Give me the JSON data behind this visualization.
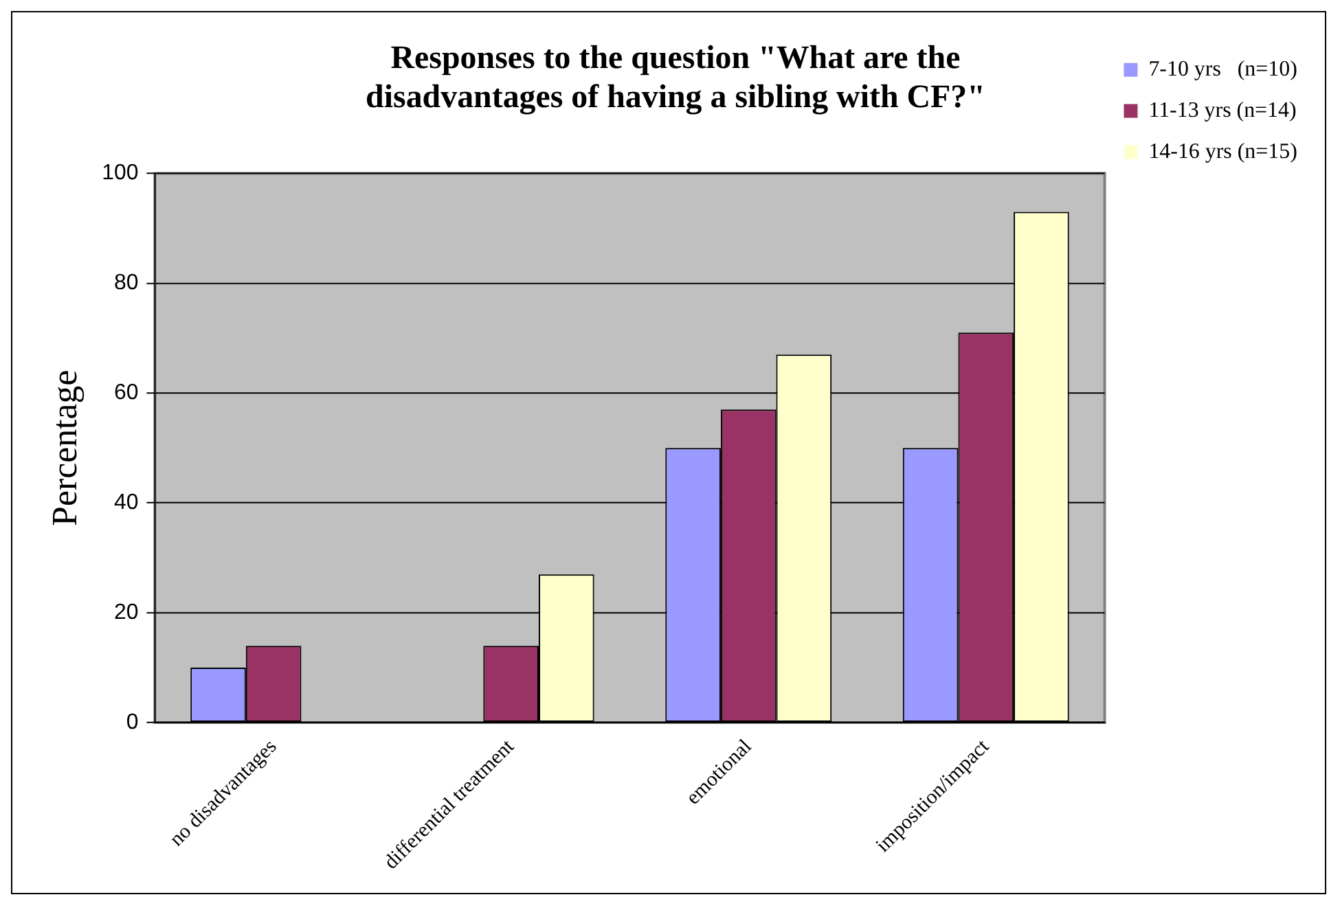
{
  "chart_data": {
    "type": "bar",
    "title": "Responses to the question \"What are the disadvantages of having a sibling with CF?\"",
    "ylabel": "Percentage",
    "categories": [
      "no disadvantages",
      "differential treatment",
      "emotional",
      "imposition/impact"
    ],
    "series": [
      {
        "name": "7-10 yrs   (n=10)",
        "color": "#9999ff",
        "values": [
          10,
          0,
          50,
          50
        ]
      },
      {
        "name": "11-13 yrs (n=14)",
        "color": "#993366",
        "values": [
          14,
          14,
          57,
          71
        ]
      },
      {
        "name": "14-16 yrs (n=15)",
        "color": "#ffffcc",
        "values": [
          0,
          27,
          67,
          93
        ]
      }
    ],
    "ylim": [
      0,
      100
    ],
    "yticks": [
      0,
      20,
      40,
      60,
      80,
      100
    ],
    "grid": "y",
    "legend": "right"
  }
}
